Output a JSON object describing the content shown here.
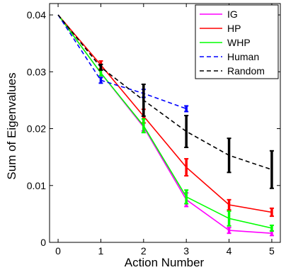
{
  "chart_data": {
    "type": "line",
    "xlabel": "Action Number",
    "ylabel": "Sum of Eigenvalues",
    "xlim": [
      -0.2,
      5.2
    ],
    "ylim": [
      0,
      0.042
    ],
    "x_ticks": [
      "0",
      "1",
      "2",
      "3",
      "4",
      "5"
    ],
    "y_ticks": [
      "0",
      "0.01",
      "0.02",
      "0.03",
      "0.04"
    ],
    "y_tick_values": [
      0,
      0.01,
      0.02,
      0.03,
      0.04
    ],
    "grid": false,
    "legend_position": "top-right",
    "series": [
      {
        "name": "IG",
        "color": "#ff00ff",
        "dashed": false,
        "x": [
          0,
          1,
          2,
          3,
          4,
          5
        ],
        "y": [
          0.04,
          0.0298,
          0.0203,
          0.0075,
          0.0021,
          0.0016
        ],
        "err": [
          0,
          0.0005,
          0.0007,
          0.0012,
          0.0005,
          0.0004
        ]
      },
      {
        "name": "HP",
        "color": "#ff0000",
        "dashed": false,
        "x": [
          0,
          1,
          2,
          3,
          4,
          5
        ],
        "y": [
          0.04,
          0.0312,
          0.0222,
          0.0132,
          0.0066,
          0.0053
        ],
        "err": [
          0,
          0.0007,
          0.0012,
          0.0015,
          0.0009,
          0.0007
        ]
      },
      {
        "name": "WHP",
        "color": "#00ff00",
        "dashed": false,
        "x": [
          0,
          1,
          2,
          3,
          4,
          5
        ],
        "y": [
          0.04,
          0.0298,
          0.0205,
          0.008,
          0.0042,
          0.0025
        ],
        "err": [
          0,
          0.0005,
          0.0012,
          0.0012,
          0.0013,
          0.0005
        ]
      },
      {
        "name": "Human",
        "color": "#0000ff",
        "dashed": true,
        "x": [
          0,
          1,
          2,
          3
        ],
        "y": [
          0.04,
          0.0285,
          0.0262,
          0.0235
        ],
        "err": [
          0,
          0.0005,
          0.0007,
          0.0005
        ]
      },
      {
        "name": "Random",
        "color": "#000000",
        "dashed": true,
        "x": [
          0,
          1,
          2,
          3,
          4,
          5
        ],
        "y": [
          0.04,
          0.0308,
          0.025,
          0.0195,
          0.0153,
          0.0128
        ],
        "err": [
          0,
          0.0005,
          0.0028,
          0.0028,
          0.003,
          0.0033
        ]
      }
    ]
  }
}
